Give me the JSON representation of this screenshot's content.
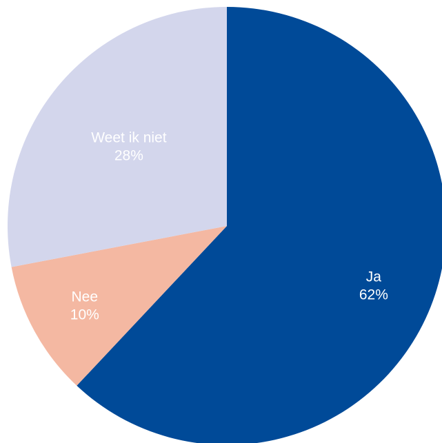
{
  "chart_data": {
    "type": "pie",
    "title": "",
    "slices": [
      {
        "label": "Ja",
        "value": 62,
        "value_label": "62%",
        "color": "#004A98"
      },
      {
        "label": "Nee",
        "value": 10,
        "value_label": "10%",
        "color": "#F4B8A2"
      },
      {
        "label": "Weet ik niet",
        "value": 28,
        "value_label": "28%",
        "color": "#D3D6EC"
      }
    ],
    "start_angle_deg": 0,
    "direction": "clockwise",
    "legend": "none"
  }
}
